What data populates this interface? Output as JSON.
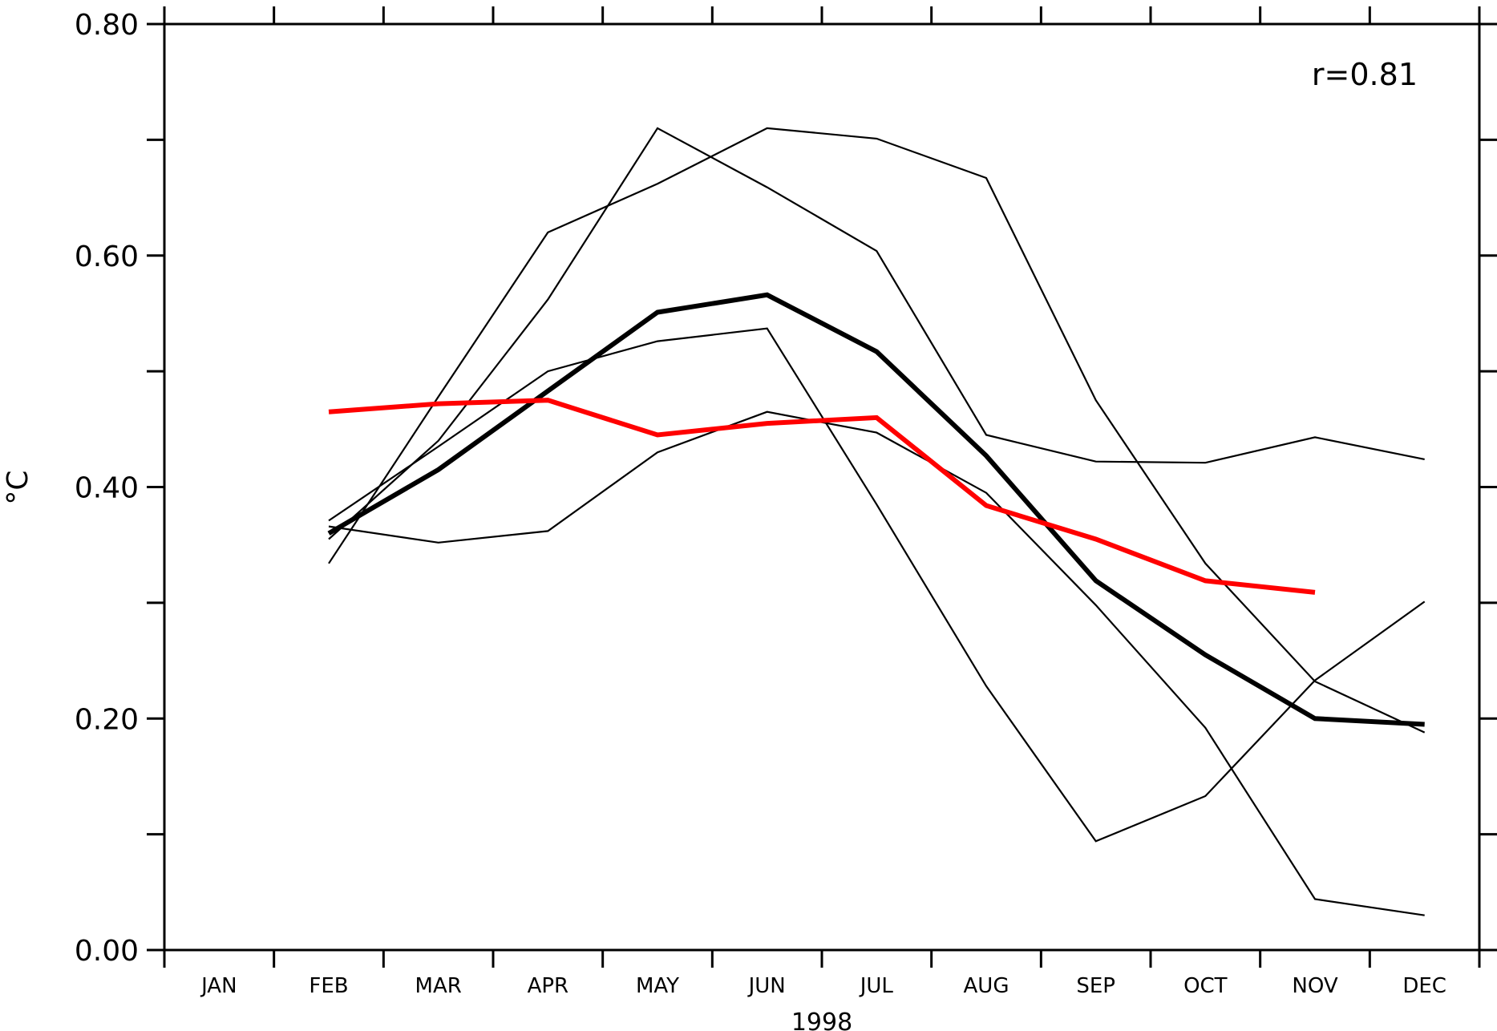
{
  "chart_data": {
    "type": "line",
    "xlabel": "1998",
    "ylabel": "°C",
    "annotation": "r=0.81",
    "categories": [
      "JAN",
      "FEB",
      "MAR",
      "APR",
      "MAY",
      "JUN",
      "JUL",
      "AUG",
      "SEP",
      "OCT",
      "NOV",
      "DEC"
    ],
    "ylim": [
      0,
      0.8
    ],
    "yticks_labeled": [
      "0.00",
      "0.20",
      "0.40",
      "0.60",
      "0.80"
    ],
    "yticks_minor": [
      0.1,
      0.3,
      0.5,
      0.7
    ],
    "grid": false,
    "legend": "none",
    "series": [
      {
        "style": "thin",
        "color": "#000000",
        "values": [
          null,
          0.366,
          0.352,
          0.362,
          0.43,
          0.465,
          0.447,
          0.395,
          0.298,
          0.192,
          0.044,
          0.03
        ]
      },
      {
        "style": "thin",
        "color": "#000000",
        "values": [
          null,
          0.334,
          0.478,
          0.62,
          0.662,
          0.71,
          0.701,
          0.667,
          0.475,
          0.334,
          0.232,
          0.188
        ]
      },
      {
        "style": "thin",
        "color": "#000000",
        "values": [
          null,
          0.355,
          0.44,
          0.562,
          0.71,
          0.659,
          0.604,
          0.445,
          0.422,
          0.421,
          0.443,
          0.424
        ]
      },
      {
        "style": "thin",
        "color": "#000000",
        "values": [
          null,
          0.371,
          0.435,
          0.5,
          0.526,
          0.537,
          0.385,
          0.228,
          0.094,
          0.133,
          0.233,
          0.301
        ]
      },
      {
        "style": "thick",
        "color": "#000000",
        "values": [
          null,
          0.36,
          0.415,
          0.483,
          0.551,
          0.566,
          0.517,
          0.427,
          0.319,
          0.255,
          0.2,
          0.195
        ]
      },
      {
        "style": "thick",
        "color": "#ff0000",
        "values": [
          null,
          0.465,
          0.472,
          0.475,
          0.445,
          0.455,
          0.46,
          0.384,
          0.355,
          0.319,
          0.309,
          null
        ]
      }
    ]
  }
}
